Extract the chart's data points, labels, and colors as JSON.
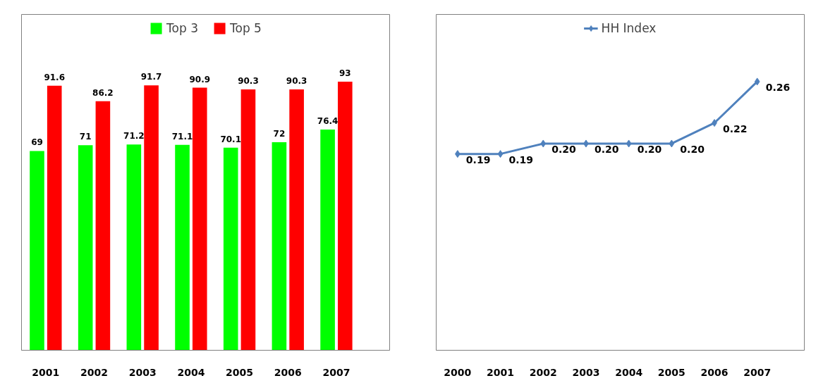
{
  "chart_data": [
    {
      "type": "bar",
      "categories": [
        "2001",
        "2002",
        "2003",
        "2004",
        "2005",
        "2006",
        "2007"
      ],
      "series": [
        {
          "name": "Top 3",
          "color": "#00ff00",
          "values": [
            69,
            71,
            71.2,
            71.1,
            70.1,
            72,
            76.4
          ]
        },
        {
          "name": "Top 5",
          "color": "#ff0000",
          "values": [
            91.6,
            86.2,
            91.7,
            90.9,
            90.3,
            90.3,
            93
          ]
        }
      ],
      "data_labels": true,
      "legend": "top",
      "grid": false,
      "tick_labels": "x"
    },
    {
      "type": "line",
      "categories": [
        "2000",
        "2001",
        "2002",
        "2003",
        "2004",
        "2005",
        "2006",
        "2007"
      ],
      "series": [
        {
          "name": "HH Index",
          "color": "#4f81bd",
          "values": [
            0.19,
            0.19,
            0.2,
            0.2,
            0.2,
            0.2,
            0.22,
            0.26
          ],
          "value_labels": [
            "0.19",
            "0.19",
            "0.20",
            "0.20",
            "0.20",
            "0.20",
            "0.22",
            "0.26"
          ]
        }
      ],
      "marker": "diamond",
      "line_style": "solid",
      "legend": "top",
      "grid": false,
      "tick_labels": "x"
    }
  ]
}
